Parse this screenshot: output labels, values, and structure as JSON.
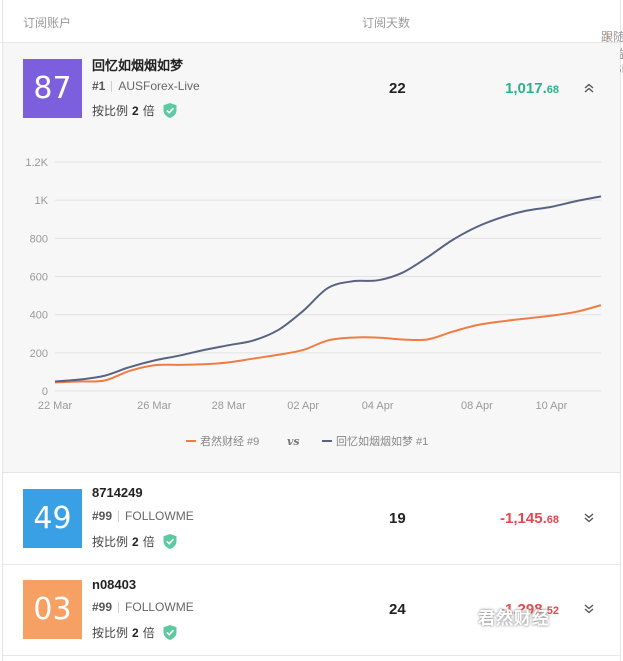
{
  "header": {
    "account_col": "订阅账户",
    "days_col": "订阅天数",
    "return_col": "跟随收益 (USD)",
    "sort_icon": "↓"
  },
  "rows": [
    {
      "score": "87",
      "score_color": "#7b5fdc",
      "name": "回忆如烟烟如梦",
      "rank": "#1",
      "broker": "AUSForex-Live",
      "ratio_prefix": "按比例",
      "ratio_value": "2",
      "ratio_suffix": "倍",
      "days": "22",
      "return_main": "1,017.",
      "return_dec": "68",
      "return_color": "#2bb38a",
      "chevron": "chevron-up-double-icon"
    },
    {
      "score": "49",
      "score_color": "#3aa0e6",
      "name": "8714249",
      "rank": "#99",
      "broker": "FOLLOWME",
      "ratio_prefix": "按比例",
      "ratio_value": "2",
      "ratio_suffix": "倍",
      "days": "19",
      "return_main": "-1,145.",
      "return_dec": "68",
      "return_color": "#e5484d",
      "chevron": "chevron-down-double-icon"
    },
    {
      "score": "03",
      "score_color": "#f7a064",
      "name": "n08403",
      "rank": "#99",
      "broker": "FOLLOWME",
      "ratio_prefix": "按比例",
      "ratio_value": "2",
      "ratio_suffix": "倍",
      "days": "24",
      "return_main": "-1,298.",
      "return_dec": "52",
      "return_color": "#e5484d",
      "chevron": "chevron-down-double-icon"
    }
  ],
  "watermark": "君然财经",
  "chart_data": {
    "type": "line",
    "title": "",
    "xlabel": "",
    "ylabel": "",
    "ylim": [
      0,
      1200
    ],
    "yticks": [
      "0",
      "200",
      "400",
      "600",
      "800",
      "1K",
      "1.2K"
    ],
    "xticks": [
      "22 Mar",
      "26 Mar",
      "28 Mar",
      "02 Apr",
      "04 Apr",
      "08 Apr",
      "10 Apr"
    ],
    "grid": true,
    "legend": "bottom-center",
    "legend_vs": "vs",
    "x": [
      "22 Mar",
      "",
      "",
      "",
      "26 Mar",
      "",
      "",
      "28 Mar",
      "",
      "",
      "02 Apr",
      "",
      "",
      "04 Apr",
      "",
      "",
      "",
      "08 Apr",
      "",
      "",
      "10 Apr",
      "",
      ""
    ],
    "series": [
      {
        "name": "君然财经 #9",
        "color": "#f07c43",
        "values": [
          45,
          50,
          55,
          105,
          135,
          137,
          140,
          150,
          170,
          190,
          215,
          265,
          280,
          280,
          270,
          270,
          310,
          345,
          365,
          380,
          395,
          415,
          450
        ]
      },
      {
        "name": "回忆如烟烟如梦 #1",
        "color": "#566482",
        "values": [
          50,
          60,
          80,
          125,
          160,
          185,
          215,
          240,
          265,
          320,
          420,
          540,
          575,
          580,
          620,
          700,
          790,
          860,
          910,
          945,
          965,
          995,
          1020
        ]
      }
    ]
  }
}
